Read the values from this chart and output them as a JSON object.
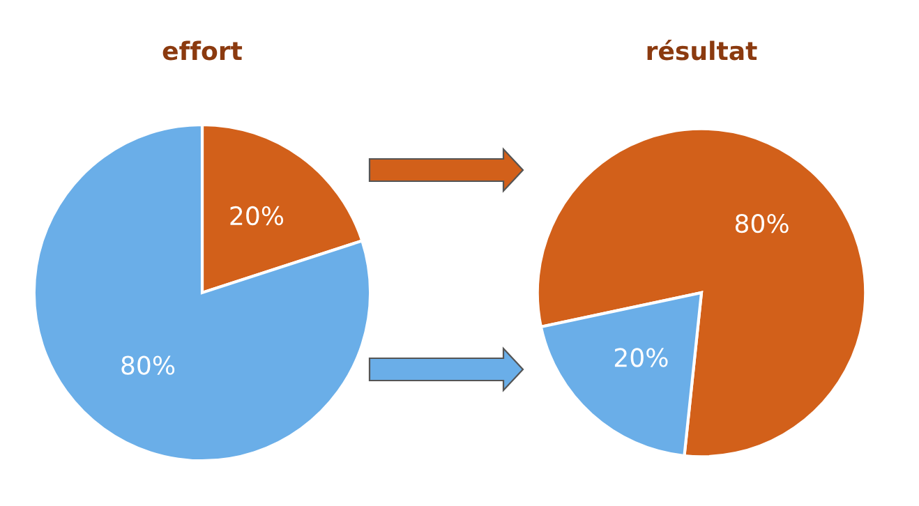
{
  "chart_data": [
    {
      "type": "pie",
      "title": "effort",
      "categories": [
        null,
        null
      ],
      "values": [
        20,
        80
      ],
      "colors": [
        "#d2601a",
        "#6aaee8"
      ],
      "value_labels": [
        "20%",
        "80%"
      ]
    },
    {
      "type": "pie",
      "title": "résultat",
      "categories": [
        null,
        null
      ],
      "values": [
        80,
        20
      ],
      "colors": [
        "#d2601a",
        "#6aaee8"
      ],
      "value_labels": [
        "80%",
        "20%"
      ]
    }
  ]
}
